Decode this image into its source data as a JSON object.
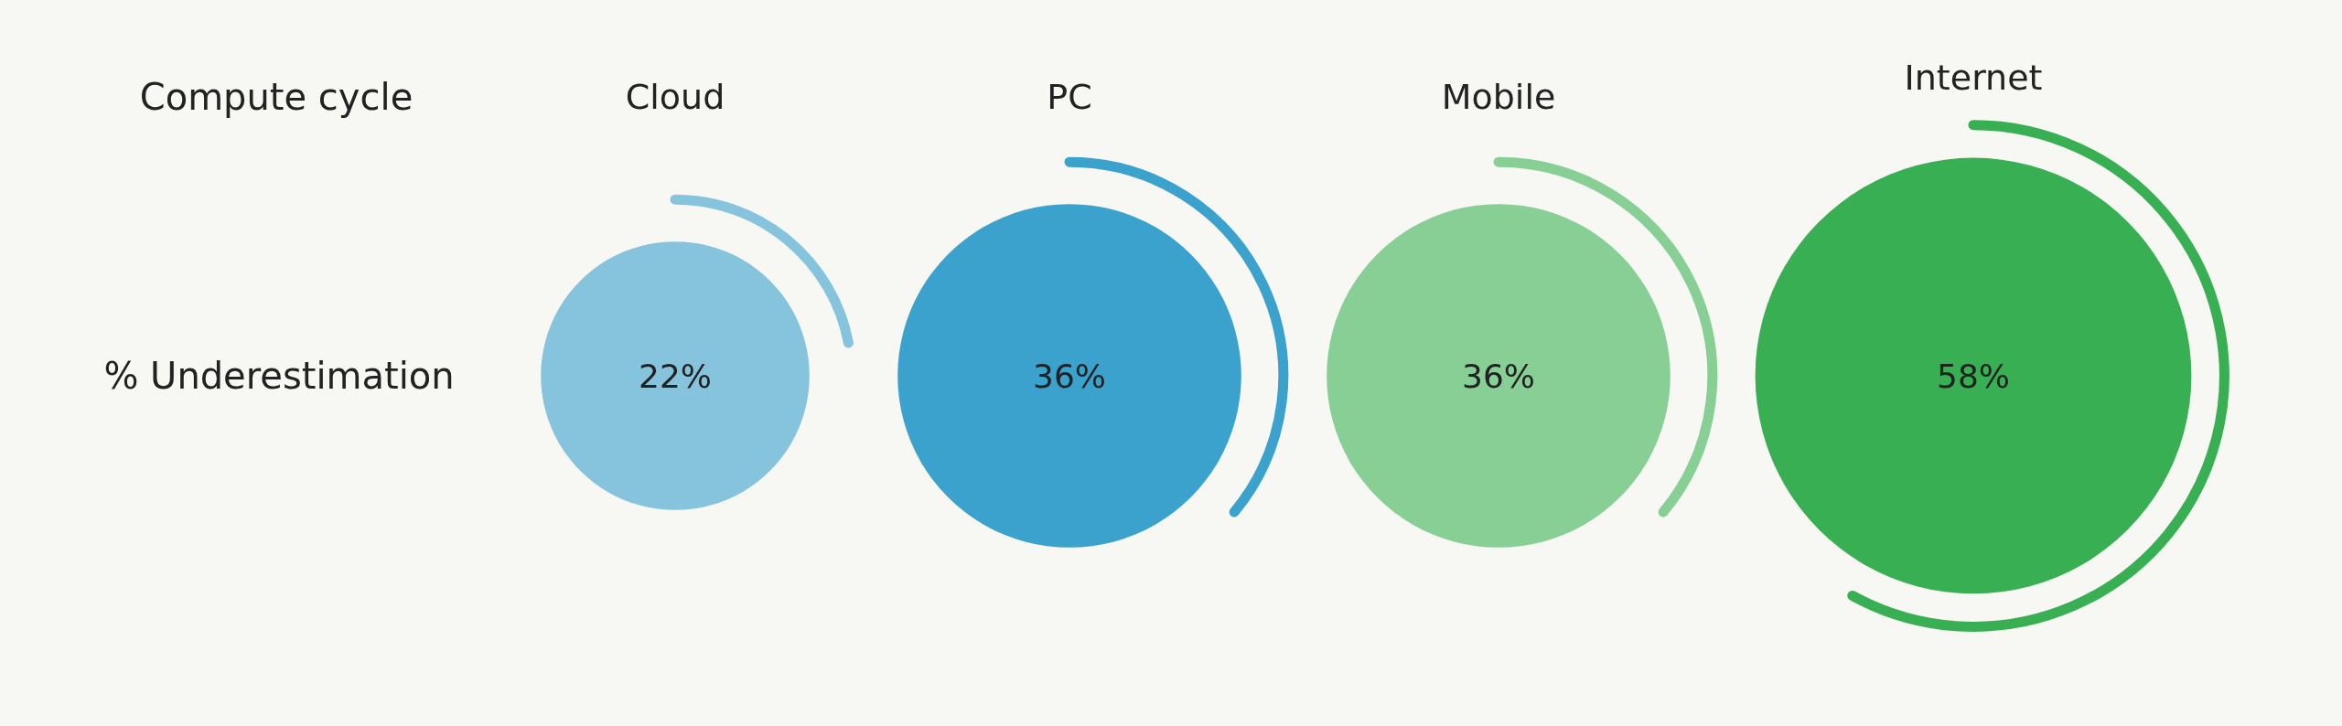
{
  "chart_data": {
    "type": "other",
    "xlabel": "Compute cycle",
    "ylabel": "% Underestimation",
    "categories": [
      "Cloud",
      "PC",
      "Mobile",
      "Internet"
    ],
    "values": [
      22,
      36,
      36,
      58
    ],
    "colors": [
      "#86c4de",
      "#3aa2cd",
      "#88cf96",
      "#38af52"
    ],
    "value_labels": [
      "22%",
      "36%",
      "36%",
      "58%"
    ]
  }
}
